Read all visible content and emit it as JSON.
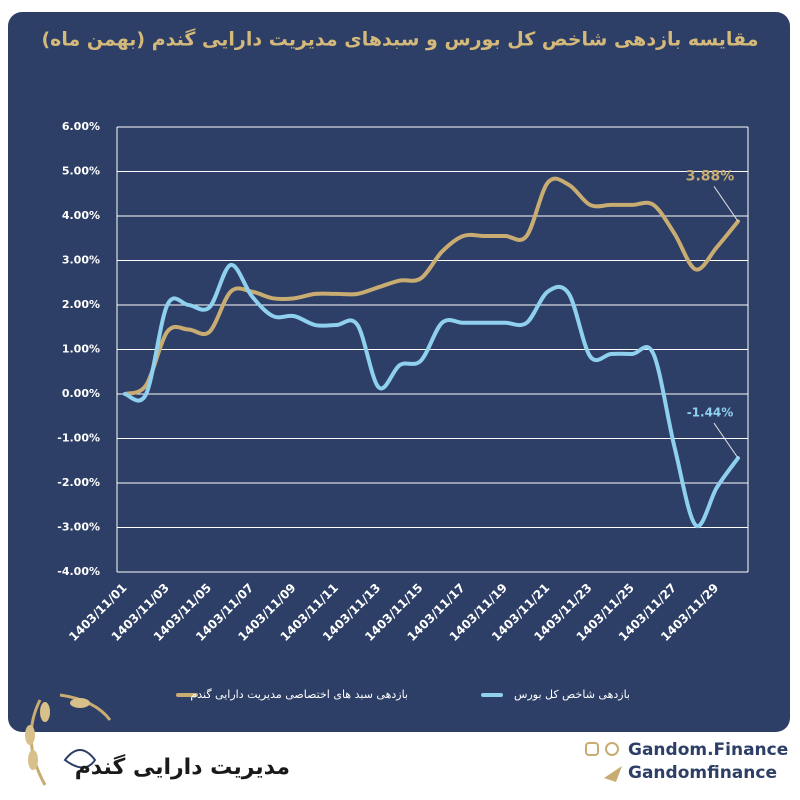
{
  "chart_data": {
    "type": "line",
    "title": "مقایسه بازدهی شاخص کل بورس و سبدهای مدیریت دارایی گندم (بهمن ماه)",
    "categories": [
      "1403/11/01",
      null,
      "1403/11/03",
      null,
      "1403/11/05",
      null,
      "1403/11/07",
      null,
      "1403/11/09",
      null,
      "1403/11/11",
      null,
      "1403/11/13",
      null,
      "1403/11/15",
      null,
      "1403/11/17",
      null,
      "1403/11/19",
      null,
      "1403/11/21",
      null,
      "1403/11/23",
      null,
      "1403/11/25",
      null,
      "1403/11/27",
      null,
      "1403/11/29",
      null
    ],
    "series": [
      {
        "name": "بازدهی سبد های اختصاصی مدیریت  دارایی گندم",
        "color": "#c8ac72",
        "values": [
          0,
          0.2,
          1.4,
          1.45,
          1.4,
          2.3,
          2.3,
          2.15,
          2.15,
          2.25,
          2.25,
          2.25,
          2.4,
          2.55,
          2.6,
          3.2,
          3.55,
          3.55,
          3.55,
          3.55,
          4.75,
          4.7,
          4.25,
          4.25,
          4.25,
          4.25,
          3.6,
          2.8,
          3.3,
          3.88
        ],
        "value_labels": [
          null,
          null,
          null,
          null,
          null,
          null,
          null,
          null,
          null,
          null,
          null,
          null,
          null,
          null,
          null,
          null,
          null,
          null,
          null,
          null,
          null,
          null,
          null,
          null,
          null,
          null,
          null,
          null,
          null,
          "3.88%"
        ]
      },
      {
        "name": "بازدهی شاخص کل بورس",
        "color": "#8fd0ee",
        "values": [
          0,
          0,
          2.0,
          2.0,
          1.95,
          2.9,
          2.2,
          1.75,
          1.75,
          1.55,
          1.55,
          1.55,
          0.15,
          0.65,
          0.75,
          1.6,
          1.6,
          1.6,
          1.6,
          1.6,
          2.3,
          2.25,
          0.85,
          0.9,
          0.9,
          0.9,
          -1.2,
          -2.95,
          -2.1,
          -1.44
        ],
        "value_labels": [
          null,
          null,
          null,
          null,
          null,
          null,
          null,
          null,
          null,
          null,
          null,
          null,
          null,
          null,
          null,
          null,
          null,
          null,
          null,
          null,
          null,
          null,
          null,
          null,
          null,
          null,
          null,
          null,
          null,
          "-1.44%"
        ]
      }
    ],
    "ylim": [
      -4,
      6
    ],
    "yticks": [
      {
        "value": -4,
        "label": "-4.00%"
      },
      {
        "value": -3,
        "label": "-3.00%"
      },
      {
        "value": -2,
        "label": "-2.00%"
      },
      {
        "value": -1,
        "label": "-1.00%"
      },
      {
        "value": 0,
        "label": "0.00%"
      },
      {
        "value": 1,
        "label": "1.00%"
      },
      {
        "value": 2,
        "label": "2.00%"
      },
      {
        "value": 3,
        "label": "3.00%"
      },
      {
        "value": 4,
        "label": "4.00%"
      },
      {
        "value": 5,
        "label": "5.00%"
      },
      {
        "value": 6,
        "label": "6.00%"
      }
    ],
    "grid": true
  },
  "footer": {
    "brand": "مدیریت دارایی گندم",
    "website": "Gandom.Finance",
    "telegram": "Gandomfinance"
  }
}
